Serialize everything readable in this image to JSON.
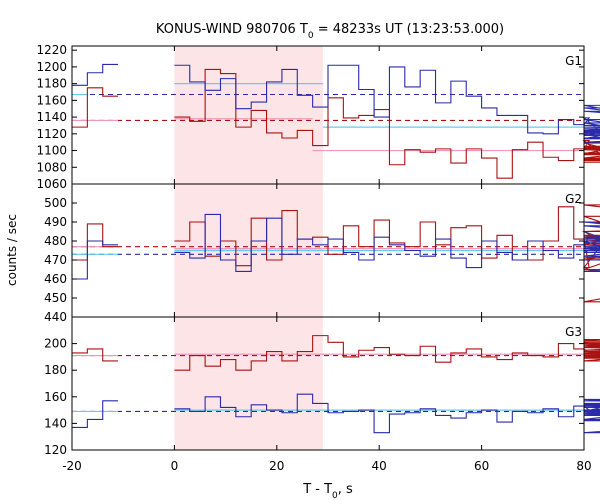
{
  "chart_data": {
    "type": "line",
    "title_main": "KONUS-WIND 980706 T",
    "title_sub": "0",
    "title_rest": " = 48233s UT (13:23:53.000)",
    "xlabel_main": "T - T",
    "xlabel_sub": "0",
    "xlabel_rest": ", s",
    "ylabel": "counts / sec",
    "xlim": [
      -20,
      80
    ],
    "x_ticks": [
      -20,
      0,
      20,
      40,
      60,
      80
    ],
    "highlight_interval": [
      0,
      29
    ],
    "colors": {
      "hard": "#aa1111",
      "soft": "#2a2aaa",
      "hard_fit": "#ee99bb",
      "soft_fit": "#66ccee",
      "highlight": "#fde4e6"
    },
    "panels": [
      {
        "label": "G1",
        "ylim": [
          1060,
          1220
        ],
        "yrange_draw": [
          1060,
          1225
        ],
        "y_ticks": [
          1060,
          1080,
          1100,
          1120,
          1140,
          1160,
          1180,
          1200,
          1220
        ],
        "series": [
          {
            "color_key": "hard",
            "pre_x0": -20,
            "pre_step": 3,
            "pre_values": [
              1128,
              1175,
              1165
            ],
            "x0": 0,
            "step": 3,
            "values": [
              1140,
              1135,
              1197,
              1192,
              1128,
              1148,
              1121,
              1115,
              1124,
              1106,
              1163,
              1139,
              1142,
              1149,
              1083,
              1101,
              1098,
              1102,
              1085,
              1102,
              1091,
              1067,
              1101,
              1110,
              1092,
              1088,
              1102,
              1112,
              1091,
              1096,
              1109,
              1089,
              1102,
              1088,
              1101,
              1105,
              1090,
              1103,
              1088,
              1095,
              1102,
              1089,
              1097,
              1104,
              1091,
              1088,
              1095,
              1101,
              1086,
              1091
            ]
          },
          {
            "color_key": "soft",
            "pre_x0": -20,
            "pre_step": 3,
            "pre_values": [
              1178,
              1193,
              1203
            ],
            "x0": 0,
            "step": 3,
            "values": [
              1202,
              1182,
              1172,
              1186,
              1150,
              1158,
              1182,
              1197,
              1166,
              1152,
              1202,
              1202,
              1173,
              1140,
              1200,
              1176,
              1196,
              1157,
              1183,
              1165,
              1151,
              1142,
              1142,
              1121,
              1120,
              1137,
              1131,
              1139,
              1119,
              1133,
              1124,
              1118,
              1137,
              1121,
              1130,
              1126,
              1114,
              1154,
              1118,
              1124,
              1123,
              1151,
              1115,
              1130,
              1122,
              1147,
              1121,
              1110,
              1128,
              1119
            ]
          }
        ],
        "fits": [
          {
            "color_key": "hard",
            "y": 1136,
            "dashed": true
          },
          {
            "color_key": "soft",
            "y": 1167,
            "dashed": true
          },
          {
            "color_key": "soft_fit",
            "segments": [
              [
                -20,
                -17,
                1167
              ],
              [
                0,
                29,
                1180
              ],
              [
                29,
                80,
                1128
              ]
            ]
          },
          {
            "color_key": "hard_fit",
            "segments": [
              [
                -20,
                -11,
                1136
              ],
              [
                0,
                27,
                1138
              ],
              [
                27,
                80,
                1100
              ]
            ]
          }
        ]
      },
      {
        "label": "G2",
        "ylim": [
          440,
          510
        ],
        "yrange_draw": [
          440,
          510
        ],
        "y_ticks": [
          440,
          450,
          460,
          470,
          480,
          490,
          500
        ],
        "series": [
          {
            "color_key": "hard",
            "pre_x0": -20,
            "pre_step": 3,
            "pre_values": [
              470,
              489,
              477
            ],
            "x0": 0,
            "step": 3,
            "values": [
              480,
              490,
              472,
              480,
              467,
              492,
              470,
              496,
              481,
              482,
              473,
              488,
              477,
              491,
              479,
              477,
              490,
              478,
              487,
              488,
              471,
              483,
              470,
              470,
              480,
              498,
              481,
              466,
              480,
              481,
              485,
              465,
              480,
              478,
              493,
              470,
              482,
              483,
              476,
              464,
              478,
              471,
              485,
              490,
              481,
              499,
              480,
              483,
              448,
              480
            ]
          },
          {
            "color_key": "soft",
            "pre_x0": -20,
            "pre_step": 3,
            "pre_values": [
              460,
              480,
              478
            ],
            "x0": 0,
            "step": 3,
            "values": [
              474,
              471,
              494,
              470,
              464,
              480,
              492,
              473,
              481,
              478,
              481,
              474,
              470,
              482,
              478,
              475,
              472,
              481,
              471,
              466,
              480,
              474,
              470,
              480,
              475,
              471,
              478,
              482,
              480,
              474,
              485,
              472,
              477,
              475,
              481,
              490,
              482,
              476,
              488,
              479,
              479,
              475,
              472,
              488,
              476,
              464,
              472,
              470,
              474,
              476
            ]
          }
        ],
        "fits": [
          {
            "color_key": "hard",
            "y": 477,
            "dashed": true
          },
          {
            "color_key": "soft",
            "y": 473,
            "dashed": true
          },
          {
            "color_key": "soft_fit",
            "segments": [
              [
                -20,
                -11,
                473
              ],
              [
                0,
                80,
                475
              ]
            ]
          },
          {
            "color_key": "hard_fit",
            "segments": [
              [
                -20,
                -11,
                477
              ],
              [
                0,
                80,
                476
              ]
            ]
          }
        ]
      },
      {
        "label": "G3",
        "ylim": [
          120,
          220
        ],
        "yrange_draw": [
          120,
          220
        ],
        "y_ticks": [
          120,
          140,
          160,
          180,
          200
        ],
        "series": [
          {
            "color_key": "hard",
            "pre_x0": -20,
            "pre_step": 3,
            "pre_values": [
              193,
              196,
              187
            ],
            "x0": 0,
            "step": 3,
            "values": [
              180,
              191,
              183,
              188,
              180,
              187,
              194,
              187,
              194,
              206,
              201,
              190,
              195,
              197,
              192,
              191,
              198,
              186,
              193,
              196,
              190,
              188,
              193,
              191,
              190,
              200,
              196,
              193,
              189,
              201,
              190,
              195,
              198,
              194,
              191,
              203,
              193,
              187,
              199,
              190,
              200,
              194,
              189,
              197,
              192,
              191,
              199,
              200,
              195,
              202
            ]
          },
          {
            "color_key": "soft",
            "pre_x0": -20,
            "pre_step": 3,
            "pre_values": [
              137,
              143,
              157
            ],
            "x0": 0,
            "step": 3,
            "values": [
              151,
              149,
              160,
              152,
              145,
              154,
              150,
              148,
              162,
              155,
              148,
              149,
              150,
              133,
              147,
              148,
              151,
              146,
              144,
              148,
              150,
              141,
              149,
              148,
              151,
              145,
              153,
              150,
              149,
              155,
              148,
              143,
              150,
              149,
              150,
              154,
              148,
              147,
              149,
              142,
              157,
              155,
              146,
              153,
              148,
              142,
              158,
              147,
              133,
              152
            ]
          }
        ],
        "fits": [
          {
            "color_key": "hard",
            "y": 191,
            "dashed": true
          },
          {
            "color_key": "soft",
            "y": 149,
            "dashed": true
          },
          {
            "color_key": "soft_fit",
            "segments": [
              [
                -20,
                -11,
                149
              ],
              [
                0,
                80,
                150
              ]
            ]
          },
          {
            "color_key": "hard_fit",
            "segments": [
              [
                -20,
                -11,
                191
              ],
              [
                0,
                80,
                192
              ]
            ]
          }
        ]
      }
    ]
  }
}
